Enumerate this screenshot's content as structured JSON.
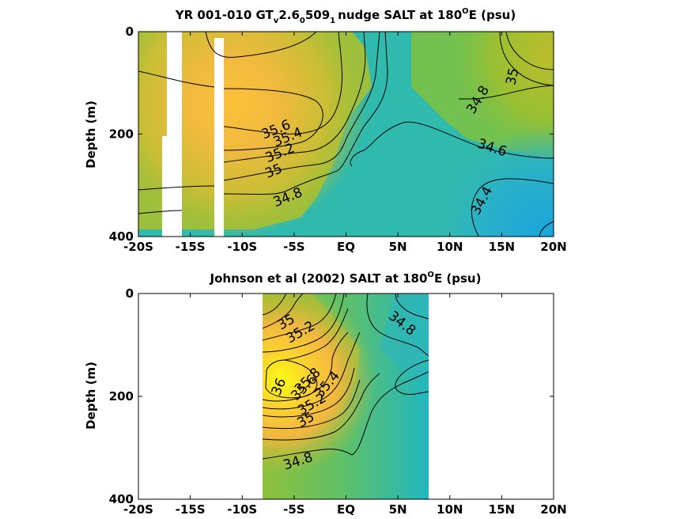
{
  "chart_data": [
    {
      "type": "contour",
      "title_parts": [
        "YR 001-010 GT",
        "v",
        "2.6",
        "0",
        "509",
        "1",
        "nudge SALT at 180",
        "O",
        "E (psu)"
      ],
      "ylabel": "Depth (m)",
      "xlabel": "",
      "x_ticks": [
        "-20S",
        "-15S",
        "-10S",
        "-5S",
        "EQ",
        "5N",
        "10N",
        "15N",
        "20N"
      ],
      "x_tick_values": [
        -20,
        -15,
        -10,
        -5,
        0,
        5,
        10,
        15,
        20
      ],
      "y_ticks": [
        "0",
        "200",
        "400"
      ],
      "y_tick_values": [
        0,
        200,
        400
      ],
      "xlim": [
        -20,
        20
      ],
      "ylim": [
        0,
        400
      ],
      "y_reversed": true,
      "grid": false,
      "colormap": "parula",
      "clim": [
        34.2,
        36.1
      ],
      "contour_levels": [
        34.4,
        34.6,
        34.8,
        35,
        35.2,
        35.4,
        35.6
      ],
      "contour_labels": [
        "35.6",
        "35.4",
        "35.2",
        "35",
        "34.8",
        "34.8",
        "35",
        "34.6",
        "34.4"
      ],
      "data_region": [
        -20,
        20
      ],
      "missing_columns": [
        [
          -18.2,
          -16.8
        ],
        [
          -13.3,
          -12.4
        ]
      ]
    },
    {
      "type": "contour",
      "title_parts": [
        "Johnson et al (2002) SALT at 180",
        "O",
        "E (psu)"
      ],
      "ylabel": "Depth (m)",
      "xlabel": "",
      "x_ticks": [
        "-20S",
        "-15S",
        "-10S",
        "-5S",
        "EQ",
        "5N",
        "10N",
        "15N",
        "20N"
      ],
      "x_tick_values": [
        -20,
        -15,
        -10,
        -5,
        0,
        5,
        10,
        15,
        20
      ],
      "y_ticks": [
        "0",
        "200",
        "400"
      ],
      "y_tick_values": [
        0,
        200,
        400
      ],
      "xlim": [
        -20,
        20
      ],
      "ylim": [
        0,
        400
      ],
      "y_reversed": true,
      "grid": false,
      "colormap": "parula",
      "clim": [
        34.2,
        36.1
      ],
      "contour_levels": [
        34.8,
        35,
        35.2,
        35.4,
        35.6,
        35.8,
        36
      ],
      "contour_labels": [
        "35",
        "35.2",
        "34.8",
        "36",
        "35.8",
        "35.6",
        "35.4",
        "35.2",
        "35",
        "34.8"
      ],
      "data_region": [
        -8,
        8
      ],
      "missing_columns": []
    }
  ]
}
